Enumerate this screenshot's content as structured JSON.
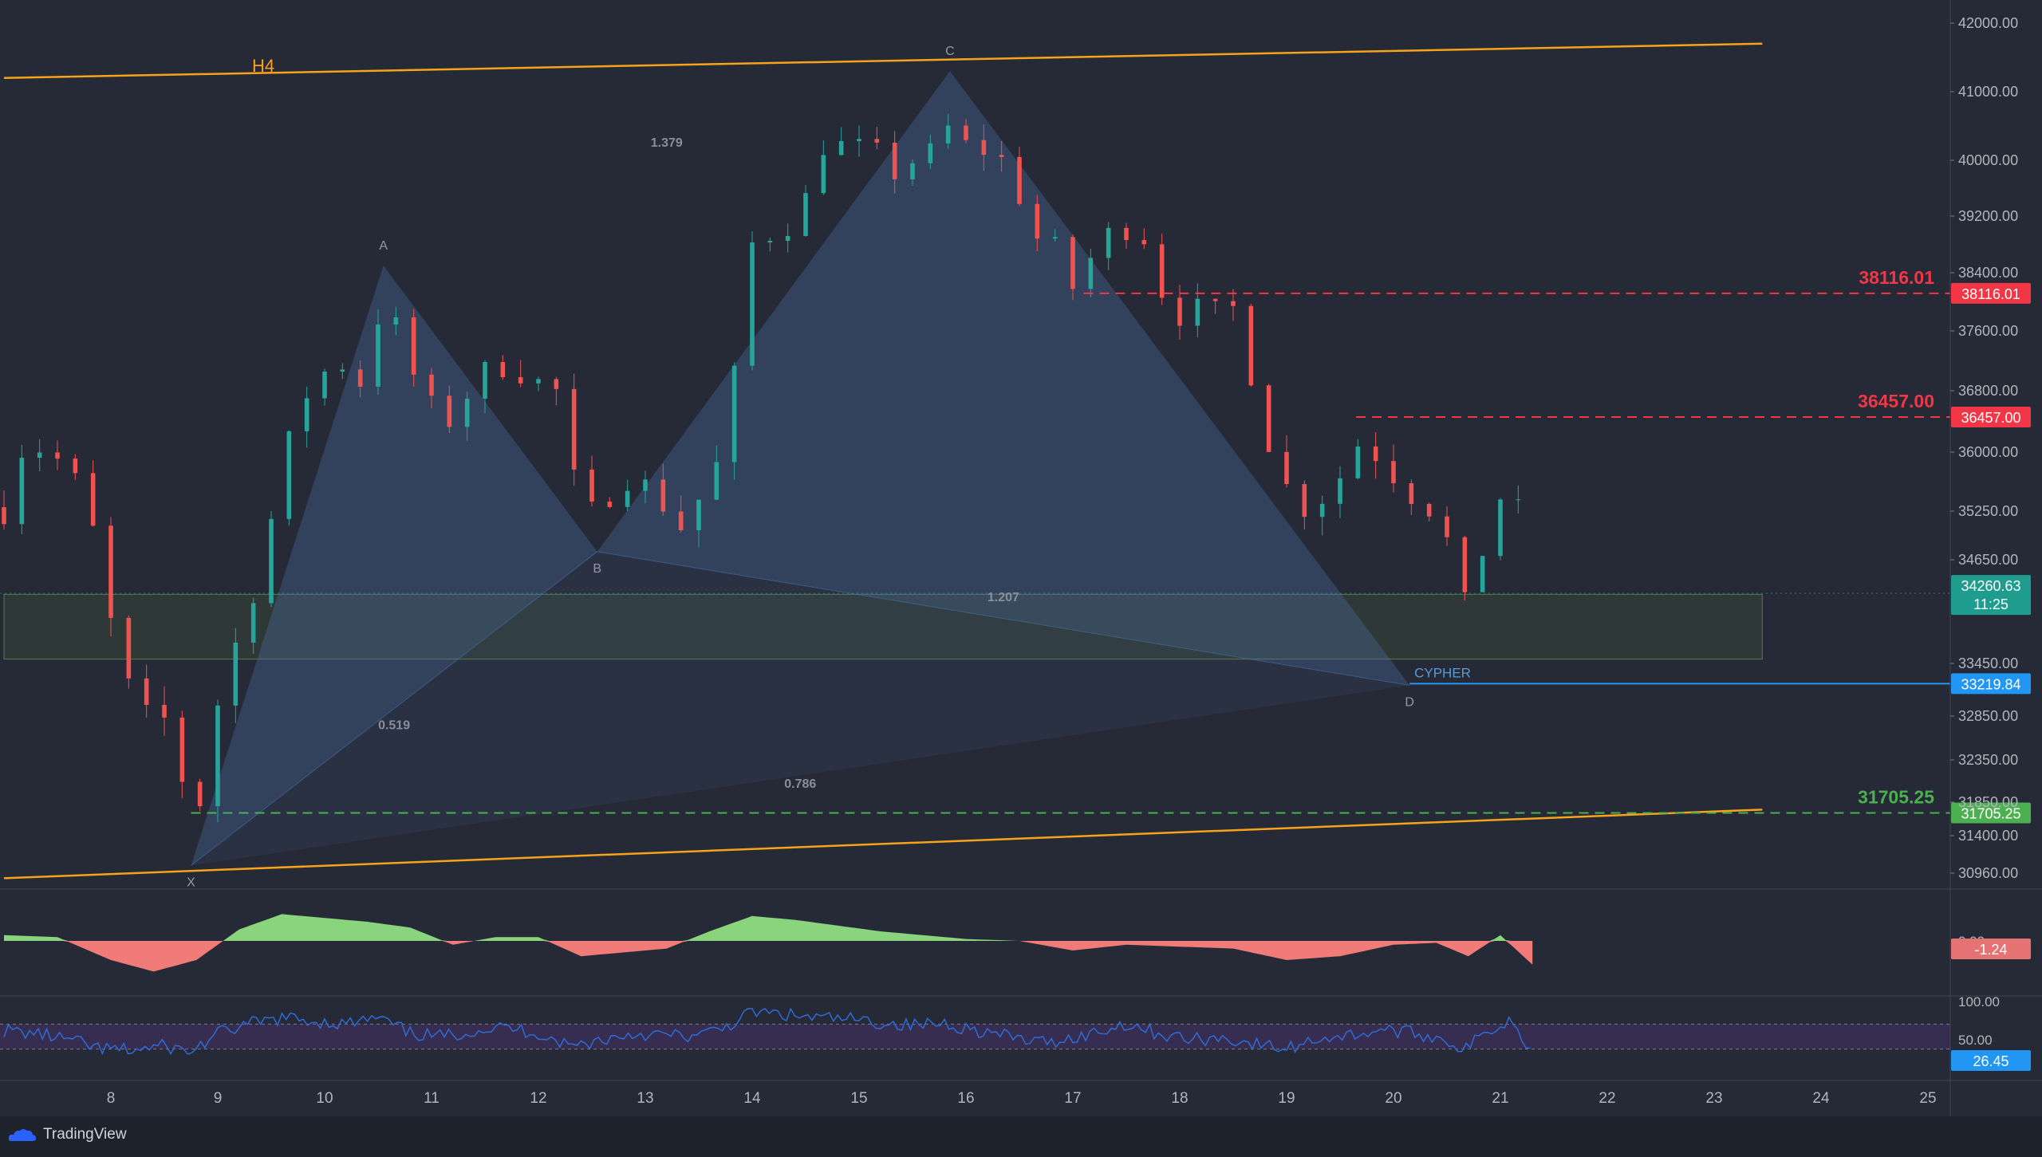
{
  "chart_data": {
    "type": "candlestick",
    "timeframe_label": "H4",
    "pattern_name": "CYPHER",
    "x_ticks": [
      "8",
      "9",
      "10",
      "11",
      "12",
      "13",
      "14",
      "15",
      "16",
      "17",
      "18",
      "19",
      "20",
      "21",
      "22",
      "23",
      "24",
      "25"
    ],
    "y_ticks": [
      "42000.00",
      "41000.00",
      "40000.00",
      "39200.00",
      "38400.00",
      "37600.00",
      "36800.00",
      "36000.00",
      "35250.00",
      "34650.00",
      "33450.00",
      "32850.00",
      "32350.00",
      "31850.00",
      "31400.00",
      "30960.00"
    ],
    "y_tick_values": [
      42000,
      41000,
      40000,
      39200,
      38400,
      37600,
      36800,
      36000,
      35250,
      34650,
      33450,
      32850,
      32350,
      31850,
      31400,
      30960
    ],
    "pattern_points": [
      {
        "label": "X",
        "day": 8.75,
        "price": 31050
      },
      {
        "label": "A",
        "day": 10.55,
        "price": 38500
      },
      {
        "label": "B",
        "day": 12.55,
        "price": 34750
      },
      {
        "label": "C",
        "day": 15.85,
        "price": 41300
      },
      {
        "label": "D",
        "day": 20.15,
        "price": 33200
      }
    ],
    "ratios": [
      {
        "text": "1.379",
        "day": 13.2,
        "price": 40200
      },
      {
        "text": "1.207",
        "day": 16.35,
        "price": 34170
      },
      {
        "text": "0.519",
        "day": 10.65,
        "price": 32700
      },
      {
        "text": "0.786",
        "day": 14.45,
        "price": 32020
      }
    ],
    "levels": [
      {
        "value": "38116.01",
        "price": 38116.01,
        "color": "#f23645",
        "style": "dashed"
      },
      {
        "value": "36457.00",
        "price": 36457.0,
        "color": "#f23645",
        "style": "dashed"
      },
      {
        "value": "31705.25",
        "price": 31705.25,
        "color": "#4caf50",
        "style": "dashed"
      },
      {
        "value": "33219.84",
        "price": 33219.84,
        "color": "#2196f3",
        "style": "solid"
      }
    ],
    "current_price": "34260.63",
    "countdown": "11:25",
    "trendlines": [
      {
        "from_day": 7.0,
        "from_price": 41200,
        "to_day": 23.45,
        "to_price": 41700
      },
      {
        "from_day": 7.0,
        "from_price": 30900,
        "to_day": 23.45,
        "to_price": 31750
      }
    ],
    "zone": {
      "from_day": 7.0,
      "to_day": 23.45,
      "top": 34250,
      "bottom": 33500
    },
    "close_path": [
      [
        7.0,
        35300
      ],
      [
        7.2,
        36200
      ],
      [
        7.4,
        36000
      ],
      [
        7.6,
        35800
      ],
      [
        7.8,
        35200
      ],
      [
        8.0,
        33900
      ],
      [
        8.2,
        33000
      ],
      [
        8.4,
        32700
      ],
      [
        8.6,
        32900
      ],
      [
        8.75,
        31200
      ],
      [
        8.95,
        32800
      ],
      [
        9.15,
        33600
      ],
      [
        9.35,
        34400
      ],
      [
        9.55,
        35400
      ],
      [
        9.75,
        36600
      ],
      [
        9.95,
        37000
      ],
      [
        10.15,
        37200
      ],
      [
        10.35,
        36900
      ],
      [
        10.55,
        38100
      ],
      [
        10.75,
        37300
      ],
      [
        10.95,
        36600
      ],
      [
        11.15,
        36400
      ],
      [
        11.35,
        36800
      ],
      [
        11.55,
        37100
      ],
      [
        11.75,
        37200
      ],
      [
        11.95,
        36900
      ],
      [
        12.15,
        36900
      ],
      [
        12.35,
        35500
      ],
      [
        12.55,
        35100
      ],
      [
        12.75,
        35800
      ],
      [
        12.95,
        35600
      ],
      [
        13.15,
        35400
      ],
      [
        13.3,
        35000
      ],
      [
        13.5,
        35400
      ],
      [
        13.7,
        35900
      ],
      [
        13.85,
        37100
      ],
      [
        14.0,
        38800
      ],
      [
        14.2,
        39000
      ],
      [
        14.45,
        39200
      ],
      [
        14.7,
        40400
      ],
      [
        14.9,
        40100
      ],
      [
        15.1,
        40200
      ],
      [
        15.3,
        39800
      ],
      [
        15.5,
        40000
      ],
      [
        15.7,
        40100
      ],
      [
        15.85,
        40500
      ],
      [
        16.05,
        40100
      ],
      [
        16.25,
        40200
      ],
      [
        16.45,
        39700
      ],
      [
        16.65,
        38900
      ],
      [
        16.85,
        38700
      ],
      [
        17.0,
        38200
      ],
      [
        17.25,
        38800
      ],
      [
        17.45,
        39100
      ],
      [
        17.7,
        38900
      ],
      [
        17.9,
        37800
      ],
      [
        18.1,
        37900
      ],
      [
        18.3,
        37800
      ],
      [
        18.5,
        37900
      ],
      [
        18.7,
        36900
      ],
      [
        18.9,
        35800
      ],
      [
        19.1,
        35300
      ],
      [
        19.3,
        35400
      ],
      [
        19.5,
        35700
      ],
      [
        19.7,
        36200
      ],
      [
        19.9,
        35900
      ],
      [
        20.1,
        35600
      ],
      [
        20.3,
        35300
      ],
      [
        20.45,
        35400
      ],
      [
        20.6,
        33800
      ],
      [
        20.75,
        34400
      ],
      [
        20.95,
        35300
      ],
      [
        21.1,
        35700
      ],
      [
        21.3,
        34260.63
      ]
    ],
    "macd_label": "-1.24",
    "macd_tick": "0.00",
    "macd_hist": [
      [
        7.0,
        0.3
      ],
      [
        7.5,
        0.2
      ],
      [
        8.0,
        -1.0
      ],
      [
        8.4,
        -1.6
      ],
      [
        8.8,
        -1.0
      ],
      [
        9.2,
        0.6
      ],
      [
        9.6,
        1.4
      ],
      [
        10.0,
        1.2
      ],
      [
        10.4,
        1.0
      ],
      [
        10.8,
        0.7
      ],
      [
        11.2,
        -0.2
      ],
      [
        11.6,
        0.2
      ],
      [
        12.0,
        0.2
      ],
      [
        12.4,
        -0.8
      ],
      [
        12.8,
        -0.6
      ],
      [
        13.2,
        -0.4
      ],
      [
        13.6,
        0.5
      ],
      [
        14.0,
        1.3
      ],
      [
        14.4,
        1.1
      ],
      [
        14.8,
        0.8
      ],
      [
        15.2,
        0.5
      ],
      [
        15.6,
        0.3
      ],
      [
        16.0,
        0.1
      ],
      [
        16.5,
        0.0
      ],
      [
        17.0,
        -0.5
      ],
      [
        17.5,
        -0.2
      ],
      [
        18.0,
        -0.3
      ],
      [
        18.5,
        -0.4
      ],
      [
        19.0,
        -1.0
      ],
      [
        19.5,
        -0.8
      ],
      [
        20.0,
        -0.2
      ],
      [
        20.4,
        -0.1
      ],
      [
        20.7,
        -0.8
      ],
      [
        21.0,
        0.3
      ],
      [
        21.3,
        -1.24
      ]
    ],
    "rsi_label": "26.45",
    "rsi_ticks": [
      "100.00",
      "50.00"
    ],
    "rsi_path": [
      [
        7.0,
        60
      ],
      [
        7.3,
        55
      ],
      [
        7.6,
        45
      ],
      [
        7.9,
        30
      ],
      [
        8.2,
        28
      ],
      [
        8.5,
        35
      ],
      [
        8.75,
        25
      ],
      [
        9.0,
        55
      ],
      [
        9.3,
        70
      ],
      [
        9.6,
        80
      ],
      [
        9.9,
        75
      ],
      [
        10.2,
        70
      ],
      [
        10.5,
        80
      ],
      [
        10.8,
        55
      ],
      [
        11.1,
        50
      ],
      [
        11.4,
        60
      ],
      [
        11.7,
        65
      ],
      [
        12.0,
        55
      ],
      [
        12.3,
        35
      ],
      [
        12.6,
        45
      ],
      [
        12.9,
        55
      ],
      [
        13.2,
        52
      ],
      [
        13.5,
        50
      ],
      [
        13.8,
        70
      ],
      [
        14.0,
        90
      ],
      [
        14.3,
        85
      ],
      [
        14.6,
        80
      ],
      [
        14.9,
        78
      ],
      [
        15.2,
        72
      ],
      [
        15.5,
        68
      ],
      [
        15.8,
        72
      ],
      [
        16.1,
        60
      ],
      [
        16.4,
        50
      ],
      [
        16.7,
        40
      ],
      [
        17.0,
        48
      ],
      [
        17.3,
        60
      ],
      [
        17.5,
        72
      ],
      [
        17.8,
        55
      ],
      [
        18.1,
        45
      ],
      [
        18.4,
        48
      ],
      [
        18.7,
        38
      ],
      [
        19.0,
        30
      ],
      [
        19.3,
        48
      ],
      [
        19.6,
        52
      ],
      [
        19.9,
        62
      ],
      [
        20.2,
        55
      ],
      [
        20.5,
        45
      ],
      [
        20.65,
        28
      ],
      [
        20.9,
        60
      ],
      [
        21.1,
        78
      ],
      [
        21.3,
        26.45
      ]
    ]
  },
  "brand": {
    "name": "TradingView"
  },
  "colors": {
    "up": "#26a69a",
    "down": "#ef5350",
    "pattern_fill": "#4a6fa5",
    "trend": "#f7a21b",
    "zone": "#3a4a3a",
    "macd_pos": "#89d47c",
    "macd_neg": "#f07b78",
    "rsi_line": "#2f6bd6",
    "rsi_band": "#3e2f5a"
  }
}
